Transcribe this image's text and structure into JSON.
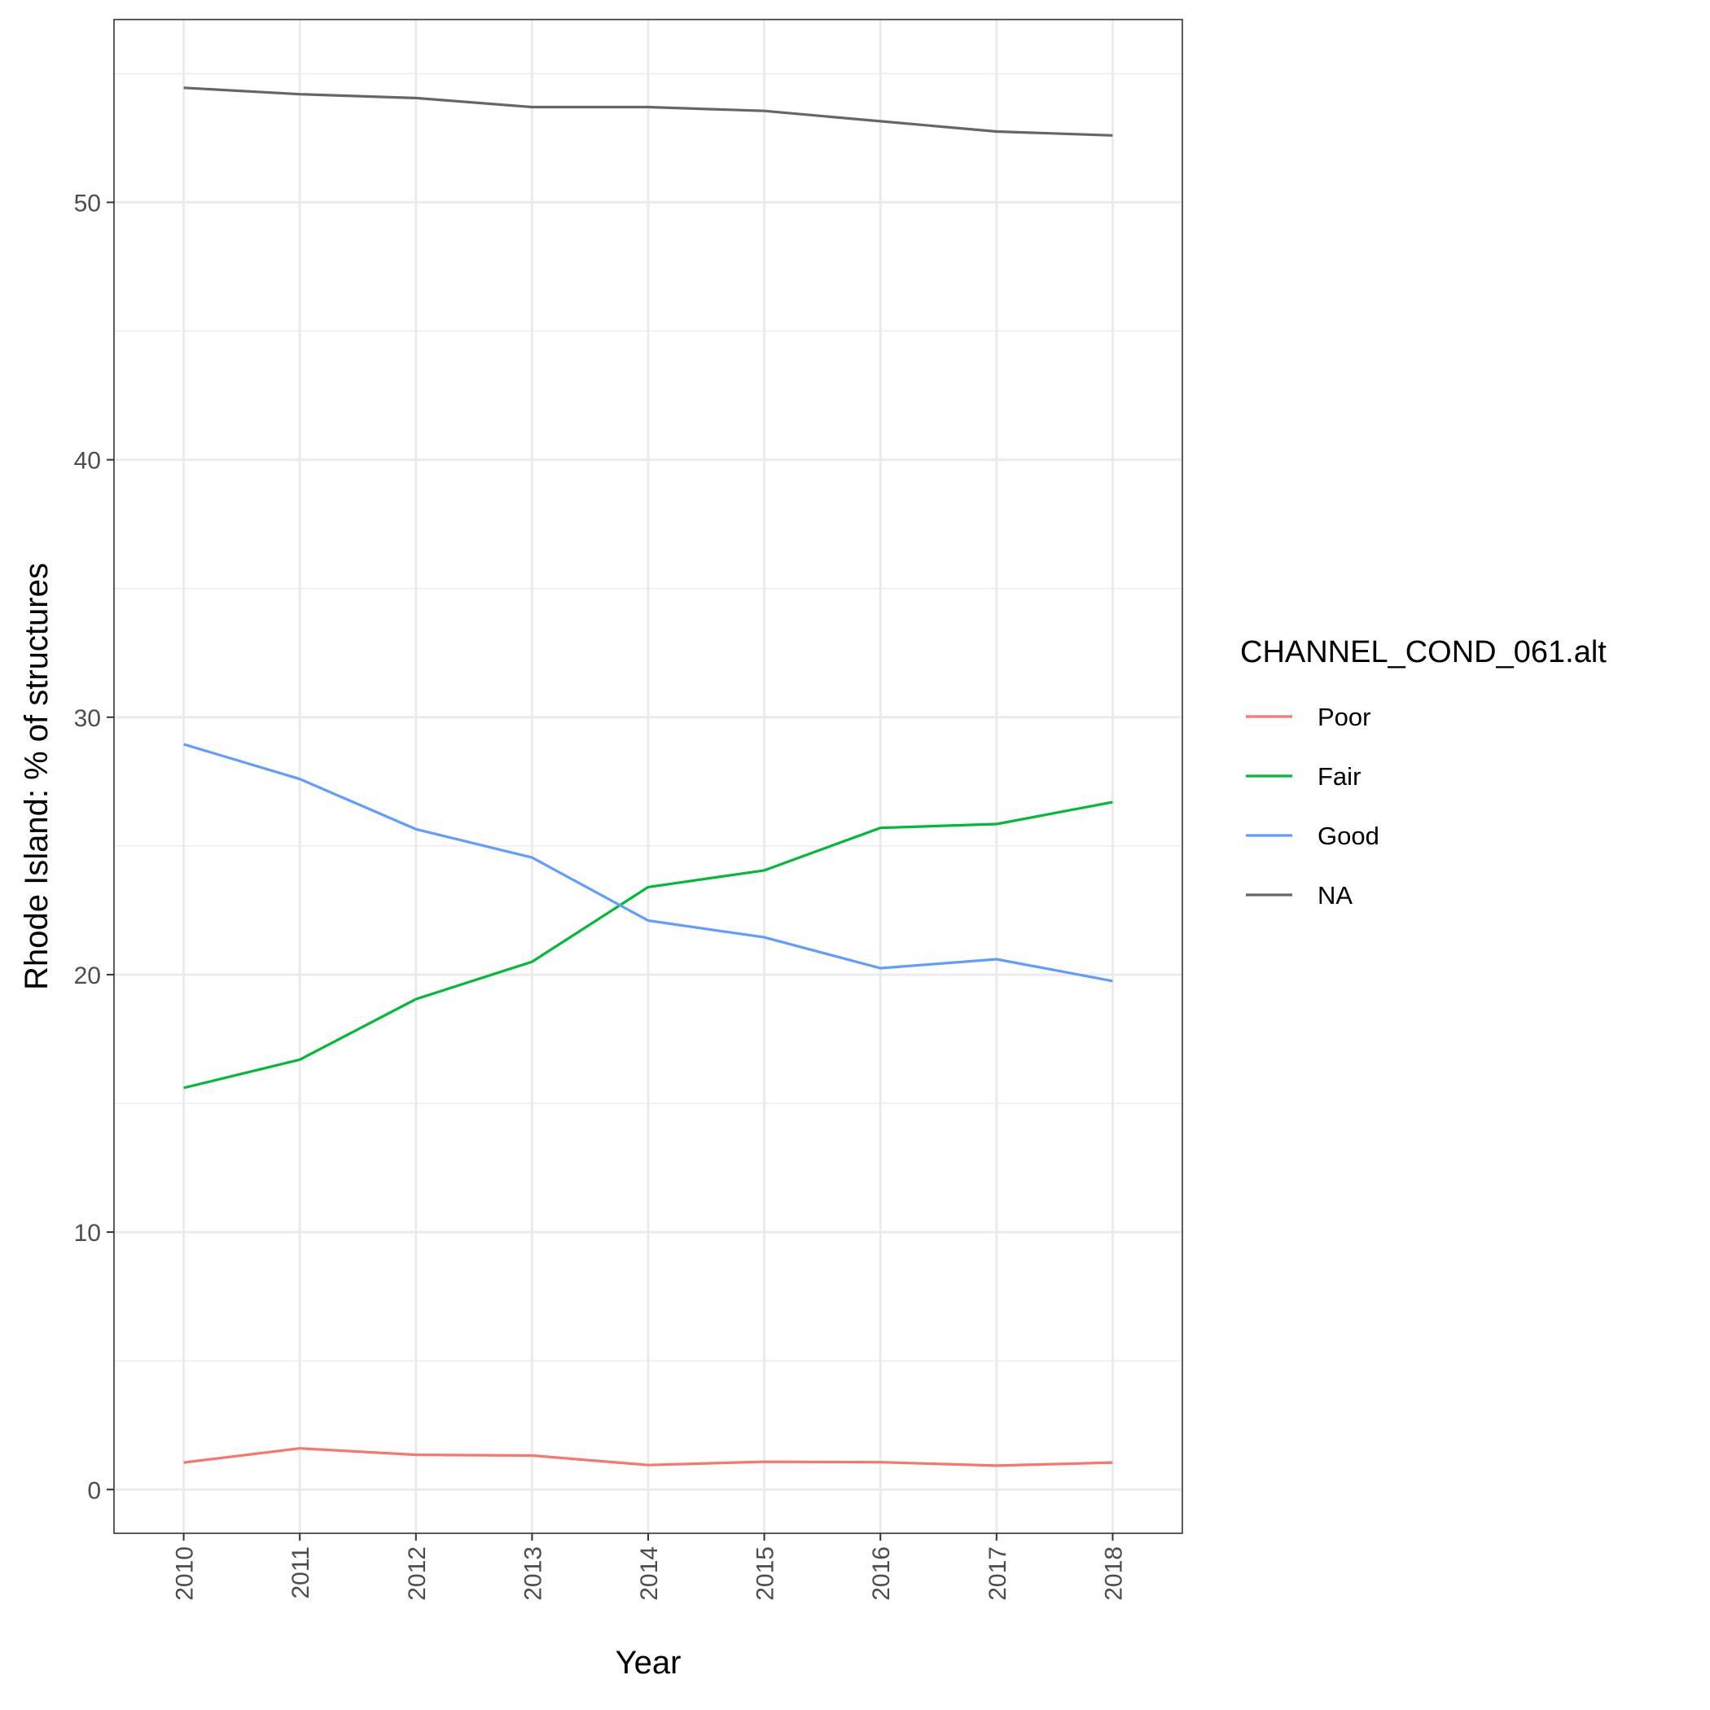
{
  "chart_data": {
    "type": "line",
    "title": "",
    "xlabel": "Year",
    "ylabel": "Rhode Island: % of structures",
    "x": [
      2010,
      2011,
      2012,
      2013,
      2014,
      2015,
      2016,
      2017,
      2018
    ],
    "x_tick_labels": [
      "2010",
      "2011",
      "2012",
      "2013",
      "2014",
      "2015",
      "2016",
      "2017",
      "2018"
    ],
    "y_ticks": [
      0,
      10,
      20,
      30,
      40,
      50
    ],
    "y_tick_labels": [
      "0",
      "10",
      "20",
      "30",
      "40",
      "50"
    ],
    "xlim": [
      2009.4,
      2018.6
    ],
    "ylim": [
      -1.7,
      57.1
    ],
    "grid": true,
    "legend": {
      "title": "CHANNEL_COND_061.alt",
      "placement": "right"
    },
    "series": [
      {
        "name": "Poor",
        "color": "#F8766D",
        "values": [
          1.05,
          1.6,
          1.35,
          1.32,
          0.95,
          1.08,
          1.06,
          0.93,
          1.05
        ]
      },
      {
        "name": "Fair",
        "color": "#00BA38",
        "values": [
          15.6,
          16.7,
          19.05,
          20.5,
          23.4,
          24.05,
          25.7,
          25.85,
          26.7
        ]
      },
      {
        "name": "Good",
        "color": "#619CFF",
        "values": [
          28.95,
          27.6,
          25.65,
          24.55,
          22.1,
          21.45,
          20.25,
          20.6,
          19.75
        ]
      },
      {
        "name": "NA",
        "color": "#666666",
        "values": [
          54.45,
          54.2,
          54.05,
          53.7,
          53.7,
          53.55,
          53.15,
          52.75,
          52.6
        ]
      }
    ]
  }
}
